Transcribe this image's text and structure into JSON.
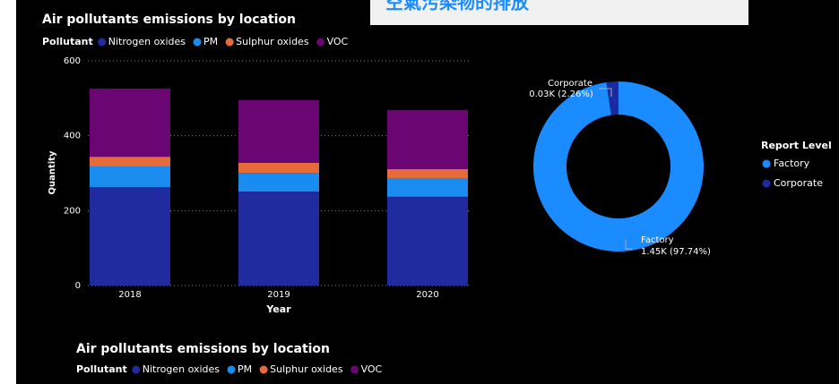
{
  "overlay_title": "空氣污染物的排放",
  "chart_data": [
    {
      "type": "bar",
      "stacked": true,
      "title": "Air pollutants emissions by location",
      "legend_title": "Pollutant",
      "x_label": "Year",
      "y_label": "Quantity",
      "categories": [
        "2018",
        "2019",
        "2020"
      ],
      "series": [
        {
          "name": "Nitrogen oxides",
          "color": "#1f2b9e",
          "values": [
            263,
            251,
            237
          ]
        },
        {
          "name": "PM",
          "color": "#1a8cf0",
          "values": [
            55,
            50,
            50
          ]
        },
        {
          "name": "Sulphur oxides",
          "color": "#e56b3b",
          "values": [
            26,
            27,
            24
          ]
        },
        {
          "name": "VOC",
          "color": "#6a0573",
          "values": [
            182,
            167,
            158
          ]
        }
      ],
      "ylim": [
        0,
        600
      ],
      "yticks": [
        0,
        200,
        400,
        600
      ],
      "grid": true
    },
    {
      "type": "pie",
      "donut": true,
      "legend_title": "Report Level",
      "categories": [
        "Factory",
        "Corporate"
      ],
      "values": [
        97.74,
        2.26
      ],
      "value_labels": [
        "1.45K (97.74%)",
        "0.03K (2.26%)"
      ],
      "colors": [
        "#1a8cff",
        "#1c2aa0"
      ]
    }
  ],
  "footer_chart": {
    "title": "Air pollutants emissions by location",
    "legend_title": "Pollutant",
    "legend": [
      {
        "name": "Nitrogen oxides",
        "color": "#1f2b9e"
      },
      {
        "name": "PM",
        "color": "#1a8cf0"
      },
      {
        "name": "Sulphur oxides",
        "color": "#e56b3b"
      },
      {
        "name": "VOC",
        "color": "#6a0573"
      }
    ]
  }
}
